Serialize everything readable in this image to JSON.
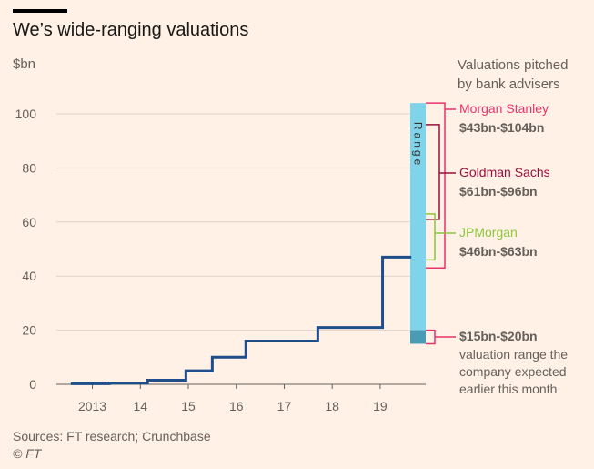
{
  "title": "We’s wide-ranging valuations",
  "unit_label": "$bn",
  "source": "Sources: FT research; Crunchbase",
  "credit": "© FT",
  "chart_data": {
    "type": "line",
    "title": "We’s wide-ranging valuations",
    "ylabel": "$bn",
    "ylim": [
      0,
      104
    ],
    "x_domain": [
      2012.25,
      2019.95
    ],
    "yticks": [
      0,
      20,
      40,
      60,
      80,
      100
    ],
    "xticks": [
      {
        "value": 2013,
        "label": "2013"
      },
      {
        "value": 2014,
        "label": "14"
      },
      {
        "value": 2015,
        "label": "15"
      },
      {
        "value": 2016,
        "label": "16"
      },
      {
        "value": 2017,
        "label": "17"
      },
      {
        "value": 2018,
        "label": "18"
      },
      {
        "value": 2019,
        "label": "19"
      }
    ],
    "grid": true,
    "series": [
      {
        "color": "#1f4e8c",
        "style": "step",
        "points": [
          {
            "x": 2012.55,
            "y": 0.2
          },
          {
            "x": 2013.35,
            "y": 0.4
          },
          {
            "x": 2014.15,
            "y": 1.5
          },
          {
            "x": 2014.95,
            "y": 5
          },
          {
            "x": 2015.5,
            "y": 10
          },
          {
            "x": 2016.2,
            "y": 16
          },
          {
            "x": 2017.7,
            "y": 21
          },
          {
            "x": 2019.05,
            "y": 47
          },
          {
            "x": 2019.65,
            "y": 47
          }
        ]
      }
    ],
    "range_bar": {
      "label": "Range",
      "color": "#7fd4ea",
      "low": 15,
      "high": 104,
      "expected_low": 15,
      "expected_high": 20,
      "expected_color": "#4a9bb5"
    },
    "annotations_header": "Valuations pitched by bank advisers",
    "annotations": [
      {
        "name": "Morgan Stanley",
        "range": "$43bn-$104bn",
        "low": 43,
        "high": 104,
        "color": "#e8336d"
      },
      {
        "name": "Goldman Sachs",
        "range": "$61bn-$96bn",
        "low": 61,
        "high": 96,
        "color": "#990f3d"
      },
      {
        "name": "JPMorgan",
        "range": "$46bn-$63bn",
        "low": 46,
        "high": 63,
        "color": "#8cc63e"
      }
    ],
    "expected_note": {
      "range": "$15bn-$20bn",
      "text": "valuation range the company expected earlier this month",
      "low": 15,
      "high": 20,
      "color": "#e8336d"
    }
  }
}
